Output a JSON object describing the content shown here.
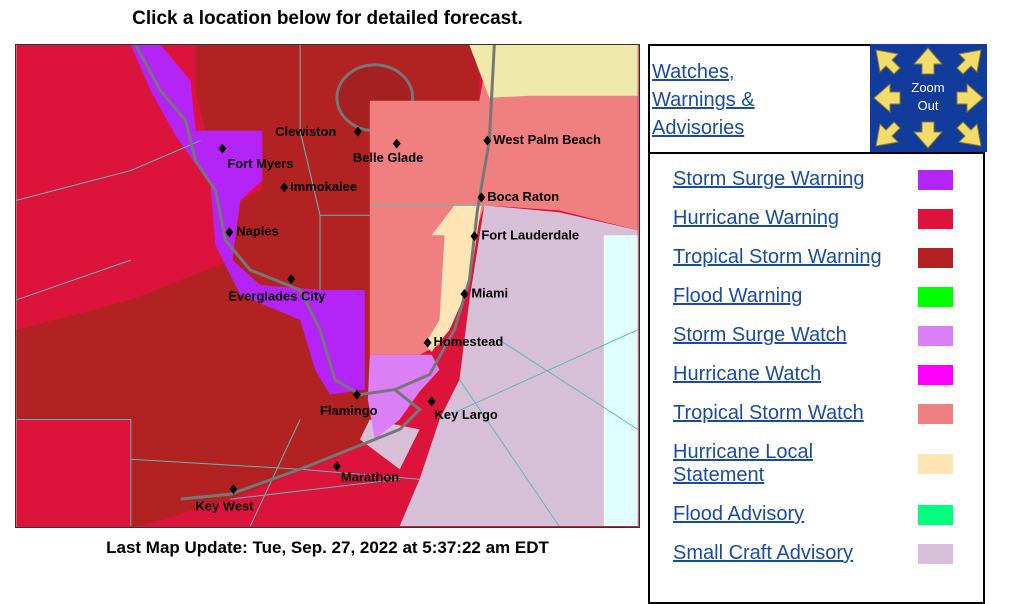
{
  "header": {
    "title": "Click a location below for detailed forecast."
  },
  "map": {
    "cities": [
      "Clewiston",
      "Belle Glade",
      "West Palm Beach",
      "Fort Myers",
      "Immokalee",
      "Boca Raton",
      "Naples",
      "Fort Lauderdale",
      "Everglades City",
      "Miami",
      "Homestead",
      "Flamingo",
      "Key Largo",
      "Marathon",
      "Key West"
    ],
    "last_update": "Last Map Update: Tue, Sep. 27, 2022 at 5:37:22 am EDT"
  },
  "sidebar": {
    "link": "Watches, Warnings & Advisories",
    "zoom": "Zoom Out"
  },
  "legend": [
    {
      "name": "Storm Surge Warning",
      "color": "#b524f7"
    },
    {
      "name": "Hurricane Warning",
      "color": "#dc143c"
    },
    {
      "name": "Tropical Storm Warning",
      "color": "#b22222"
    },
    {
      "name": "Flood Warning",
      "color": "#00ff00"
    },
    {
      "name": "Storm Surge Watch",
      "color": "#db7ff7"
    },
    {
      "name": "Hurricane Watch",
      "color": "#ff00ff"
    },
    {
      "name": "Tropical Storm Watch",
      "color": "#f08080"
    },
    {
      "name": "Hurricane Local Statement",
      "color": "#ffe4b5"
    },
    {
      "name": "Flood Advisory",
      "color": "#00ff7f"
    },
    {
      "name": "Small Craft Advisory",
      "color": "#d8bfd8"
    }
  ]
}
